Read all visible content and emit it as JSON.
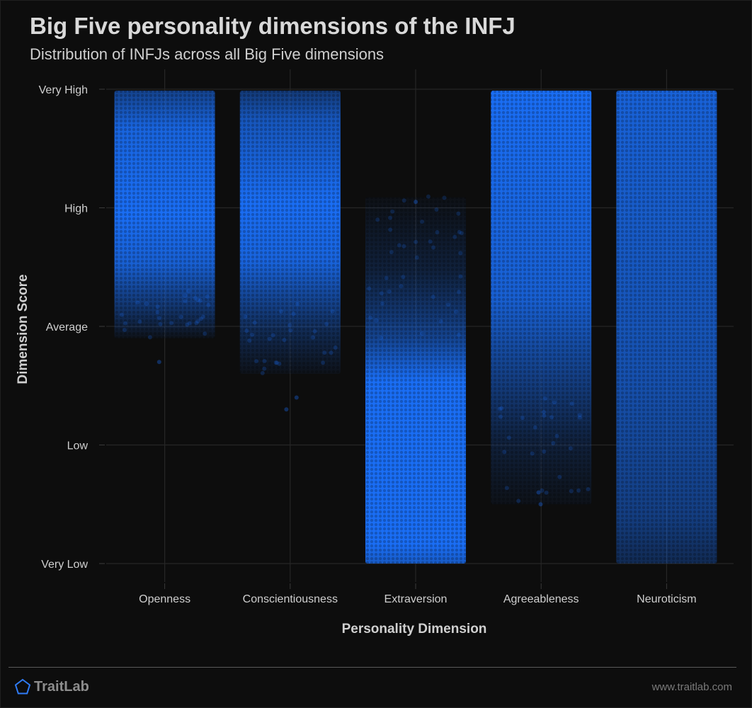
{
  "header": {
    "title": "Big Five personality dimensions of the INFJ",
    "subtitle": "Distribution of INFJs across all Big Five dimensions"
  },
  "footer": {
    "brand": "TraitLab",
    "url": "www.traitlab.com",
    "brand_icon": "pentagon-icon"
  },
  "colors": {
    "background": "#0d0d0d",
    "points": "#1a6ef5",
    "grid": "#262626",
    "text": "#d0d0d0",
    "brand_icon": "#2f7cf6"
  },
  "chart_data": {
    "type": "scatter",
    "title": "Big Five personality dimensions of the INFJ",
    "subtitle": "Distribution of INFJs across all Big Five dimensions",
    "xlabel": "Personality Dimension",
    "ylabel": "Dimension Score",
    "categories": [
      "Openness",
      "Conscientiousness",
      "Extraversion",
      "Agreeableness",
      "Neuroticism"
    ],
    "y_ticks": [
      "Very Low",
      "Low",
      "Average",
      "High",
      "Very High"
    ],
    "ylim": [
      1,
      5
    ],
    "grid": true,
    "legend": "none",
    "series": [
      {
        "category": "Openness",
        "dense_range": [
          3.3,
          4.85
        ],
        "full_range": [
          2.9,
          5.0
        ],
        "outliers": [
          2.7
        ]
      },
      {
        "category": "Conscientiousness",
        "dense_range": [
          3.2,
          4.85
        ],
        "full_range": [
          2.6,
          5.0
        ],
        "outliers": [
          2.3,
          2.4
        ]
      },
      {
        "category": "Extraversion",
        "dense_range": [
          1.0,
          2.9
        ],
        "full_range": [
          1.0,
          4.1
        ],
        "outliers": [
          4.05
        ]
      },
      {
        "category": "Agreeableness",
        "dense_range": [
          2.4,
          5.0
        ],
        "full_range": [
          1.5,
          5.0
        ],
        "outliers": [
          1.5,
          1.6
        ]
      },
      {
        "category": "Neuroticism",
        "dense_range": [
          1.0,
          5.0
        ],
        "full_range": [
          1.0,
          5.0
        ],
        "outliers": []
      }
    ]
  }
}
